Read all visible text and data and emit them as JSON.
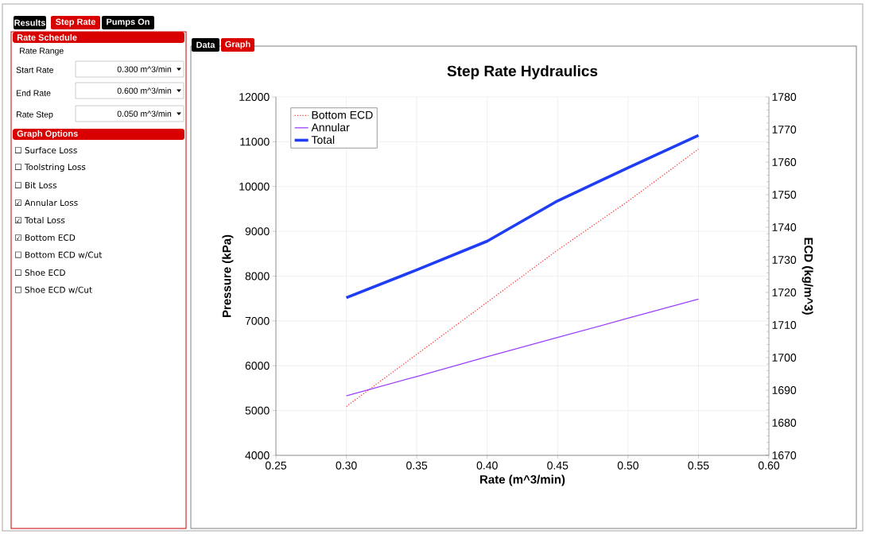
{
  "chart_data": {
    "type": "line",
    "title": "Step Rate Hydraulics",
    "xlabel": "Rate (m^3/min)",
    "ylabel": "Pressure (kPa)",
    "y2label": "ECD (kg/m^3)",
    "x": [
      0.3,
      0.35,
      0.4,
      0.45,
      0.5,
      0.55
    ],
    "series": [
      {
        "name": "Bottom ECD",
        "color": "#ff3b3b",
        "axis": "y2",
        "line_style": "dotted",
        "values": [
          1685,
          1701,
          1717,
          1733,
          1748,
          1764
        ]
      },
      {
        "name": "Annular",
        "color": "#9b40ff",
        "line_style": "solid",
        "values": [
          5330,
          5760,
          6200,
          6630,
          7060,
          7490
        ]
      },
      {
        "name": "Total",
        "color": "#1f3df5",
        "line_style": "solid",
        "values": [
          7520,
          8140,
          8780,
          9680,
          10420,
          11140
        ]
      }
    ],
    "xlim": [
      0.25,
      0.6
    ],
    "xticks": [
      {
        "value": 0.25,
        "label": "0.25"
      },
      {
        "value": 0.3,
        "label": "0.30"
      },
      {
        "value": 0.35,
        "label": "0.35"
      },
      {
        "value": 0.4,
        "label": "0.40"
      },
      {
        "value": 0.45,
        "label": "0.45"
      },
      {
        "value": 0.5,
        "label": "0.50"
      },
      {
        "value": 0.55,
        "label": "0.55"
      },
      {
        "value": 0.6,
        "label": "0.60"
      }
    ],
    "ylim": [
      4000,
      12000
    ],
    "yticks": [
      4000,
      5000,
      6000,
      7000,
      8000,
      9000,
      10000,
      11000,
      12000
    ],
    "y2lim": [
      1670,
      1780
    ],
    "y2ticks": [
      1670,
      1680,
      1690,
      1700,
      1710,
      1720,
      1730,
      1740,
      1750,
      1760,
      1770,
      1780
    ],
    "grid": true,
    "legend": "top left",
    "marker": "none",
    "annotations": [
      "Results",
      "Step Rate",
      "Pumps On",
      "Rate Schedule",
      "Rate Range",
      "Start Rate",
      "0.300 m^3/min",
      "End Rate",
      "0.600 m^3/min",
      "Rate Step",
      "0.050 m^3/min",
      "Graph Options",
      "☐ Surface Loss",
      "☐ Toolstring Loss",
      "☐ Bit Loss",
      "☑ Annular Loss",
      "☑ Total Loss",
      "☑ Bottom ECD",
      "☐ Bottom ECD w/Cut",
      "☐ Shoe ECD",
      "☐ Shoe ECD w/Cut",
      "Data",
      "Graph"
    ]
  }
}
